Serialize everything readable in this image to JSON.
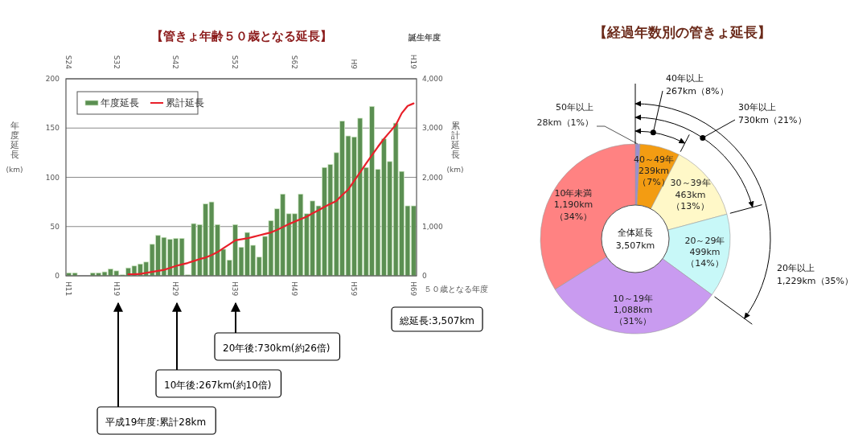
{
  "chart_data": [
    {
      "type": "bar",
      "title": "【管きょ年齢５０歳となる延長】",
      "xlabel": "５０歳となる年度",
      "x2label": "誕生年度",
      "ylabel": "年度延長\n(km)",
      "y2label": "累計延長\n(km)",
      "categories": [
        "H11",
        null,
        null,
        null,
        null,
        null,
        null,
        null,
        "H19",
        null,
        null,
        null,
        null,
        null,
        null,
        null,
        null,
        null,
        "H29",
        null,
        null,
        null,
        null,
        null,
        null,
        null,
        null,
        null,
        "H39",
        null,
        null,
        null,
        null,
        null,
        null,
        null,
        null,
        null,
        "H49",
        null,
        null,
        null,
        null,
        null,
        null,
        null,
        null,
        null,
        "H59",
        null,
        null,
        null,
        null,
        null,
        null,
        null,
        null,
        null,
        "H69"
      ],
      "ylim": [
        0,
        200
      ],
      "yticks": [
        0,
        50,
        100,
        150,
        200
      ],
      "y2lim": [
        0,
        4000
      ],
      "y2ticks": [
        0,
        {
          "value": 1000,
          "label": "1,000"
        },
        {
          "value": 2000,
          "label": "2,000"
        },
        {
          "value": 3000,
          "label": "3,000"
        },
        {
          "value": 4000,
          "label": "4,000"
        }
      ],
      "grid": "y",
      "legend": "top left",
      "series": [
        {
          "name": "年度延長",
          "color": "#5b8f52",
          "values": [
            3,
            3,
            0,
            0,
            3,
            3,
            4,
            7,
            5,
            1,
            8,
            10,
            12,
            14,
            32,
            41,
            39,
            37,
            38,
            38,
            1,
            53,
            52,
            73,
            75,
            52,
            27,
            16,
            52,
            29,
            44,
            31,
            19,
            40,
            56,
            68,
            83,
            63,
            63,
            83,
            63,
            76,
            71,
            110,
            113,
            125,
            157,
            142,
            141,
            160,
            110,
            172,
            108,
            139,
            116,
            155,
            106,
            71,
            71
          ]
        },
        {
          "name": "累計延長",
          "type": "line",
          "axis": "y2",
          "color": "#e8202a",
          "values": [
            null,
            null,
            null,
            null,
            null,
            null,
            null,
            null,
            null,
            null,
            30,
            30,
            40,
            60,
            80,
            100,
            120,
            160,
            200,
            230,
            260,
            300,
            340,
            370,
            420,
            480,
            560,
            640,
            720,
            740,
            760,
            790,
            820,
            850,
            880,
            930,
            990,
            1050,
            1100,
            1150,
            1200,
            1270,
            1330,
            1400,
            1460,
            1520,
            1640,
            1750,
            1930,
            2100,
            2280,
            2450,
            2620,
            2780,
            2920,
            3060,
            3300,
            3450,
            3500
          ]
        }
      ],
      "annotations": [
        "S24",
        "S32",
        "S42",
        "S52",
        "S62",
        "H9",
        "H19",
        "平成19年度:累計28km",
        "10年後:267km(約10倍)",
        "20年後:730km(約26倍)",
        "総延長:3,507km"
      ]
    },
    {
      "type": "donut",
      "title": "【経過年数別の管きょ延長】",
      "categories": [
        "50年以上",
        "40～49年",
        "30～39年",
        "20～29年",
        "10～19年",
        "10年未満"
      ],
      "values": [
        28,
        239,
        463,
        499,
        1088,
        1190
      ],
      "value_labels": [
        "28km（1%）",
        "239km\n（7%）",
        "463km\n（13%）",
        "499km\n（14%）",
        "1,088km\n（31%）",
        "1,190km\n（34%）"
      ],
      "colors": [
        "#9a8fd0",
        "#f39c12",
        "#fff8c8",
        "#c8f8f8",
        "#c99bf0",
        "#ff8282"
      ],
      "annotations": [
        "全体延長\n3,507km",
        "40年以上\n267km（8%）",
        "30年以上\n730km（21%）",
        "20年以上\n1,229km（35%）"
      ]
    }
  ]
}
